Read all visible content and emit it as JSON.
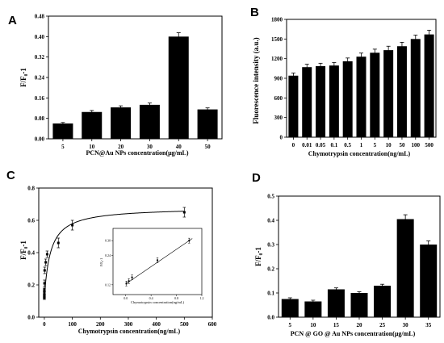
{
  "figure": {
    "panels": [
      "A",
      "B",
      "C",
      "D"
    ]
  },
  "chart_data": [
    {
      "id": "A",
      "type": "bar",
      "letter": "A",
      "categories": [
        "5",
        "10",
        "20",
        "30",
        "40",
        "50"
      ],
      "values": [
        0.06,
        0.105,
        0.123,
        0.133,
        0.4,
        0.115
      ],
      "errors": [
        0.004,
        0.006,
        0.006,
        0.007,
        0.015,
        0.006
      ],
      "xlabel": "PCN@Au NPs concentration(μg/mL)",
      "ylabel": "F/F₀-1",
      "ylim": [
        0,
        0.48
      ],
      "yticks": [
        "0.00",
        "0.08",
        "0.16",
        "0.24",
        "0.32",
        "0.40",
        "0.48"
      ],
      "ytick_values": [
        0,
        0.08,
        0.16,
        0.24,
        0.32,
        0.4,
        0.48
      ],
      "grid": false,
      "bar_color": "#000000"
    },
    {
      "id": "B",
      "type": "bar",
      "letter": "B",
      "categories": [
        "0",
        "0.01",
        "0.05",
        "0.1",
        "0.5",
        "1",
        "5",
        "10",
        "50",
        "100",
        "500"
      ],
      "values": [
        940,
        1070,
        1085,
        1095,
        1160,
        1230,
        1290,
        1330,
        1390,
        1500,
        1570
      ],
      "errors": [
        40,
        45,
        45,
        45,
        50,
        55,
        55,
        60,
        60,
        60,
        65
      ],
      "xlabel": "Chymotrypsin concentration(ng/mL)",
      "ylabel": "Fluorescence intensity (a.u.)",
      "ylim": [
        0,
        1800
      ],
      "yticks": [
        "0",
        "300",
        "600",
        "900",
        "1200",
        "1500",
        "1800"
      ],
      "ytick_values": [
        0,
        300,
        600,
        900,
        1200,
        1500,
        1800
      ],
      "grid": false,
      "bar_color": "#000000"
    },
    {
      "id": "C",
      "type": "scatter",
      "letter": "C",
      "x": [
        0,
        0.01,
        0.05,
        0.1,
        0.5,
        1,
        5,
        10,
        50,
        100,
        500
      ],
      "y": [
        0.12,
        0.13,
        0.15,
        0.17,
        0.21,
        0.29,
        0.34,
        0.39,
        0.46,
        0.57,
        0.65
      ],
      "errors": [
        0.01,
        0.01,
        0.01,
        0.01,
        0.02,
        0.02,
        0.02,
        0.02,
        0.03,
        0.03,
        0.03
      ],
      "fit_curve": "langmuir",
      "xlabel": "Chymotrypsin concentration(ng/mL)",
      "ylabel": "F/F₀-1",
      "xlim": [
        -20,
        600
      ],
      "ylim": [
        0,
        0.8
      ],
      "xticks": [
        "0",
        "100",
        "200",
        "300",
        "400",
        "500",
        "600"
      ],
      "xtick_values": [
        0,
        100,
        200,
        300,
        400,
        500,
        600
      ],
      "yticks": [
        "0.0",
        "0.2",
        "0.4",
        "0.6",
        "0.8"
      ],
      "ytick_values": [
        0,
        0.2,
        0.4,
        0.6,
        0.8
      ],
      "grid": false,
      "inset": {
        "type": "scatter",
        "x": [
          0.01,
          0.05,
          0.1,
          0.5,
          1
        ],
        "y": [
          0.125,
          0.135,
          0.15,
          0.22,
          0.3
        ],
        "errors": [
          0.01,
          0.01,
          0.01,
          0.01,
          0.01
        ],
        "fit": "linear",
        "xlabel": "Chymotrypsin concentration(ng/mL)",
        "ylabel": "F/F₀-1",
        "xlim": [
          -0.2,
          1.2
        ],
        "ylim": [
          0.08,
          0.35
        ],
        "xticks": [
          "0.0",
          "0.4",
          "0.8",
          "1.2"
        ],
        "xtick_values": [
          0,
          0.4,
          0.8,
          1.2
        ],
        "yticks": [
          "0.12",
          "0.24",
          "0.30"
        ],
        "ytick_values": [
          0.12,
          0.24,
          0.3
        ]
      }
    },
    {
      "id": "D",
      "type": "bar",
      "letter": "D",
      "categories": [
        "5",
        "10",
        "15",
        "20",
        "25",
        "30",
        "35"
      ],
      "values": [
        0.075,
        0.065,
        0.115,
        0.1,
        0.13,
        0.405,
        0.3
      ],
      "errors": [
        0.005,
        0.005,
        0.006,
        0.005,
        0.006,
        0.018,
        0.015
      ],
      "xlabel": "PCN @ GO @ Au NPs  concentration(μg/mL)",
      "ylabel": "F/F₀-1",
      "ylim": [
        0,
        0.5
      ],
      "yticks": [
        "0.0",
        "0.1",
        "0.2",
        "0.3",
        "0.4",
        "0.5"
      ],
      "ytick_values": [
        0,
        0.1,
        0.2,
        0.3,
        0.4,
        0.5
      ],
      "grid": false,
      "bar_color": "#000000"
    }
  ]
}
